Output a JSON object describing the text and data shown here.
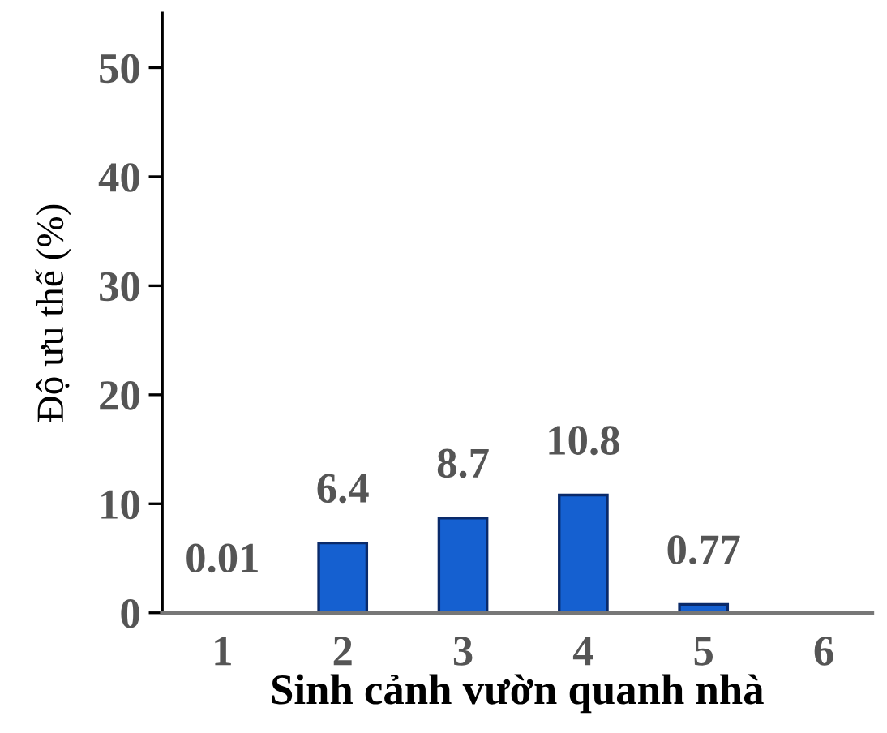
{
  "chart_data": {
    "type": "bar",
    "xlabel": "Sinh cảnh vườn quanh nhà",
    "ylabel": "Độ ưu thế (%)",
    "categories": [
      "1",
      "2",
      "3",
      "4",
      "5",
      "6"
    ],
    "values": [
      0.01,
      6.4,
      8.7,
      10.8,
      0.77,
      null
    ],
    "color": "#1560d0",
    "ylim": [
      0,
      55
    ],
    "yticks": [
      0,
      10,
      20,
      30,
      40,
      50
    ],
    "data_labels": true,
    "grid": false,
    "legend": false
  }
}
